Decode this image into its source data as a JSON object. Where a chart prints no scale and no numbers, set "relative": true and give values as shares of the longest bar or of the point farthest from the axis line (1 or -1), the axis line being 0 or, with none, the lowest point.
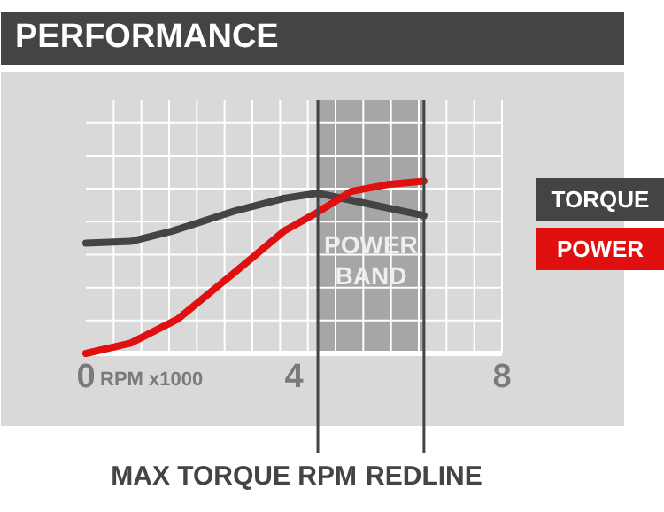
{
  "chart_data": {
    "type": "line",
    "title": "PERFORMANCE",
    "xlabel": "RPM x1000",
    "relative": true,
    "xlim": [
      0,
      8
    ],
    "xticks": [
      0,
      4,
      8
    ],
    "grid": true,
    "legend": "right",
    "line_style": "solid",
    "series": [
      {
        "name": "TORQUE",
        "color": "#444444",
        "x": [
          0,
          0.86,
          1.66,
          2.9,
          3.81,
          4.46,
          5.4,
          6.5
        ],
        "values": [
          0.64,
          0.65,
          0.71,
          0.83,
          0.9,
          0.93,
          0.87,
          0.8
        ]
      },
      {
        "name": "POWER",
        "color": "#e01010",
        "x": [
          0,
          0.86,
          1.77,
          2.9,
          3.81,
          4.46,
          5.1,
          5.8,
          6.5
        ],
        "values": [
          0,
          0.06,
          0.2,
          0.48,
          0.71,
          0.82,
          0.94,
          0.98,
          1
        ]
      }
    ],
    "bands": [
      {
        "axis": "x",
        "from": 4.46,
        "to": 6.5,
        "label": "POWER BAND",
        "color": "#999999"
      }
    ],
    "ref_lines": [
      {
        "axis": "x",
        "value": 4.46,
        "label": "MAX TORQUE RPM",
        "color": "#444444"
      },
      {
        "axis": "x",
        "value": 6.5,
        "label": "REDLINE",
        "color": "#444444"
      }
    ]
  }
}
